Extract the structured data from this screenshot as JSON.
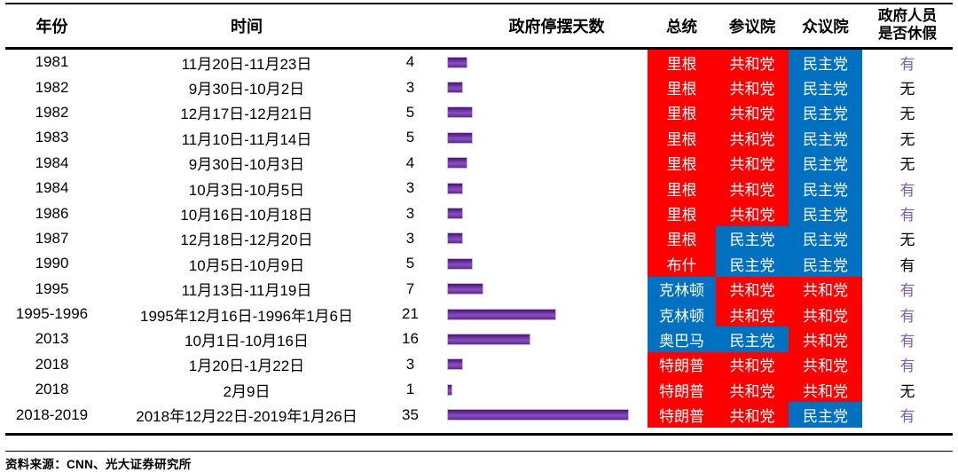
{
  "header": {
    "year": "年份",
    "time": "时间",
    "days": "政府停摆天数",
    "president": "总统",
    "senate": "参议院",
    "house": "众议院",
    "furlough_line1": "政府人员",
    "furlough_line2": "是否休假"
  },
  "colors": {
    "republican": "#FE0000",
    "democrat": "#0070C0",
    "bar_purple": "#7030A0",
    "furlough_yes_purple": "#7C5EB5",
    "text_black": "#000000"
  },
  "rows": [
    {
      "year": "1981",
      "time": "11月20日-11月23日",
      "days": 4,
      "president": "里根",
      "president_party": "republican",
      "senate": "共和党",
      "senate_party": "republican",
      "house": "民主党",
      "house_party": "democrat",
      "furlough": "有",
      "furlough_purple": true
    },
    {
      "year": "1982",
      "time": "9月30日-10月2日",
      "days": 3,
      "president": "里根",
      "president_party": "republican",
      "senate": "共和党",
      "senate_party": "republican",
      "house": "民主党",
      "house_party": "democrat",
      "furlough": "无",
      "furlough_purple": false
    },
    {
      "year": "1982",
      "time": "12月17日-12月21日",
      "days": 5,
      "president": "里根",
      "president_party": "republican",
      "senate": "共和党",
      "senate_party": "republican",
      "house": "民主党",
      "house_party": "democrat",
      "furlough": "无",
      "furlough_purple": false
    },
    {
      "year": "1983",
      "time": "11月10日-11月14日",
      "days": 5,
      "president": "里根",
      "president_party": "republican",
      "senate": "共和党",
      "senate_party": "republican",
      "house": "民主党",
      "house_party": "democrat",
      "furlough": "无",
      "furlough_purple": false
    },
    {
      "year": "1984",
      "time": "9月30日-10月3日",
      "days": 4,
      "president": "里根",
      "president_party": "republican",
      "senate": "共和党",
      "senate_party": "republican",
      "house": "民主党",
      "house_party": "democrat",
      "furlough": "无",
      "furlough_purple": false
    },
    {
      "year": "1984",
      "time": "10月3日-10月5日",
      "days": 3,
      "president": "里根",
      "president_party": "republican",
      "senate": "共和党",
      "senate_party": "republican",
      "house": "民主党",
      "house_party": "democrat",
      "furlough": "有",
      "furlough_purple": true
    },
    {
      "year": "1986",
      "time": "10月16日-10月18日",
      "days": 3,
      "president": "里根",
      "president_party": "republican",
      "senate": "共和党",
      "senate_party": "republican",
      "house": "民主党",
      "house_party": "democrat",
      "furlough": "有",
      "furlough_purple": true
    },
    {
      "year": "1987",
      "time": "12月18日-12月20日",
      "days": 3,
      "president": "里根",
      "president_party": "republican",
      "senate": "民主党",
      "senate_party": "democrat",
      "house": "民主党",
      "house_party": "democrat",
      "furlough": "无",
      "furlough_purple": false
    },
    {
      "year": "1990",
      "time": "10月5日-10月9日",
      "days": 5,
      "president": "布什",
      "president_party": "republican",
      "senate": "民主党",
      "senate_party": "democrat",
      "house": "民主党",
      "house_party": "democrat",
      "furlough": "有",
      "furlough_purple": false
    },
    {
      "year": "1995",
      "time": "11月13日-11月19日",
      "days": 7,
      "president": "克林顿",
      "president_party": "democrat",
      "senate": "共和党",
      "senate_party": "republican",
      "house": "共和党",
      "house_party": "republican",
      "furlough": "有",
      "furlough_purple": true
    },
    {
      "year": "1995-1996",
      "time": "1995年12月16日-1996年1月6日",
      "days": 21,
      "president": "克林顿",
      "president_party": "democrat",
      "senate": "共和党",
      "senate_party": "republican",
      "house": "共和党",
      "house_party": "republican",
      "furlough": "有",
      "furlough_purple": true
    },
    {
      "year": "2013",
      "time": "10月1日-10月16日",
      "days": 16,
      "president": "奥巴马",
      "president_party": "democrat",
      "senate": "民主党",
      "senate_party": "democrat",
      "house": "共和党",
      "house_party": "republican",
      "furlough": "有",
      "furlough_purple": true
    },
    {
      "year": "2018",
      "time": "1月20日-1月22日",
      "days": 3,
      "president": "特朗普",
      "president_party": "republican",
      "senate": "共和党",
      "senate_party": "republican",
      "house": "共和党",
      "house_party": "republican",
      "furlough": "有",
      "furlough_purple": true
    },
    {
      "year": "2018",
      "time": "2月9日",
      "days": 1,
      "president": "特朗普",
      "president_party": "republican",
      "senate": "共和党",
      "senate_party": "republican",
      "house": "共和党",
      "house_party": "republican",
      "furlough": "无",
      "furlough_purple": false
    },
    {
      "year": "2018-2019",
      "time": "2018年12月22日-2019年1月26日",
      "days": 35,
      "president": "特朗普",
      "president_party": "republican",
      "senate": "共和党",
      "senate_party": "republican",
      "house": "民主党",
      "house_party": "democrat",
      "furlough": "有",
      "furlough_purple": true
    }
  ],
  "source": "资料来源：CNN、光大证券研究所",
  "chart_data": {
    "type": "table",
    "title": "美国政府停摆历史（含停摆天数条形图）",
    "columns": [
      "年份",
      "时间",
      "政府停摆天数",
      "总统",
      "参议院",
      "众议院",
      "政府人员是否休假"
    ],
    "rows": [
      [
        "1981",
        "11月20日-11月23日",
        4,
        "里根",
        "共和党",
        "民主党",
        "有"
      ],
      [
        "1982",
        "9月30日-10月2日",
        3,
        "里根",
        "共和党",
        "民主党",
        "无"
      ],
      [
        "1982",
        "12月17日-12月21日",
        5,
        "里根",
        "共和党",
        "民主党",
        "无"
      ],
      [
        "1983",
        "11月10日-11月14日",
        5,
        "里根",
        "共和党",
        "民主党",
        "无"
      ],
      [
        "1984",
        "9月30日-10月3日",
        4,
        "里根",
        "共和党",
        "民主党",
        "无"
      ],
      [
        "1984",
        "10月3日-10月5日",
        3,
        "里根",
        "共和党",
        "民主党",
        "有"
      ],
      [
        "1986",
        "10月16日-10月18日",
        3,
        "里根",
        "共和党",
        "民主党",
        "有"
      ],
      [
        "1987",
        "12月18日-12月20日",
        3,
        "里根",
        "民主党",
        "民主党",
        "无"
      ],
      [
        "1990",
        "10月5日-10月9日",
        5,
        "布什",
        "民主党",
        "民主党",
        "有"
      ],
      [
        "1995",
        "11月13日-11月19日",
        7,
        "克林顿",
        "共和党",
        "共和党",
        "有"
      ],
      [
        "1995-1996",
        "1995年12月16日-1996年1月6日",
        21,
        "克林顿",
        "共和党",
        "共和党",
        "有"
      ],
      [
        "2013",
        "10月1日-10月16日",
        16,
        "奥巴马",
        "民主党",
        "共和党",
        "有"
      ],
      [
        "2018",
        "1月20日-1月22日",
        3,
        "特朗普",
        "共和党",
        "共和党",
        "有"
      ],
      [
        "2018",
        "2月9日",
        1,
        "特朗普",
        "共和党",
        "共和党",
        "无"
      ],
      [
        "2018-2019",
        "2018年12月22日-2019年1月26日",
        35,
        "特朗普",
        "共和党",
        "民主党",
        "有"
      ]
    ],
    "bar_series": {
      "name": "政府停摆天数",
      "values": [
        4,
        3,
        5,
        5,
        4,
        3,
        3,
        3,
        5,
        7,
        21,
        16,
        3,
        1,
        35
      ]
    },
    "bar_color": "#7030A0",
    "party_colors": {
      "共和党": "#FE0000",
      "民主党": "#0070C0"
    },
    "legend_position": "none",
    "grid": false
  }
}
